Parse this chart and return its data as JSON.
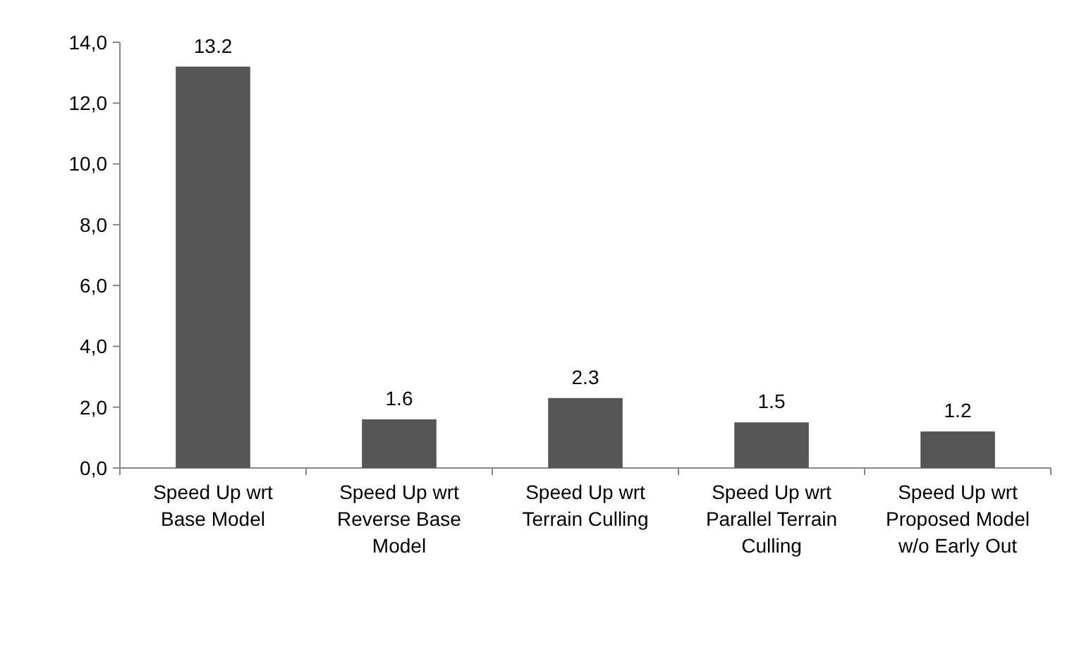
{
  "chart_data": {
    "type": "bar",
    "categories": [
      "Speed Up wrt Base Model",
      "Speed Up wrt Reverse Base Model",
      "Speed Up wrt Terrain Culling",
      "Speed Up wrt Parallel Terrain Culling",
      "Speed Up wrt Proposed Model w/o Early Out"
    ],
    "values": [
      13.2,
      1.6,
      2.3,
      1.5,
      1.2
    ],
    "color": "#555555",
    "ylim": [
      0,
      14
    ],
    "yticks": [
      {
        "value": 0,
        "label": "0,0"
      },
      {
        "value": 2,
        "label": "2,0"
      },
      {
        "value": 4,
        "label": "4,0"
      },
      {
        "value": 6,
        "label": "6,0"
      },
      {
        "value": 8,
        "label": "8,0"
      },
      {
        "value": 10,
        "label": "10,0"
      },
      {
        "value": 12,
        "label": "12,0"
      },
      {
        "value": 14,
        "label": "14,0"
      }
    ],
    "data_labels": true,
    "grid": false
  }
}
